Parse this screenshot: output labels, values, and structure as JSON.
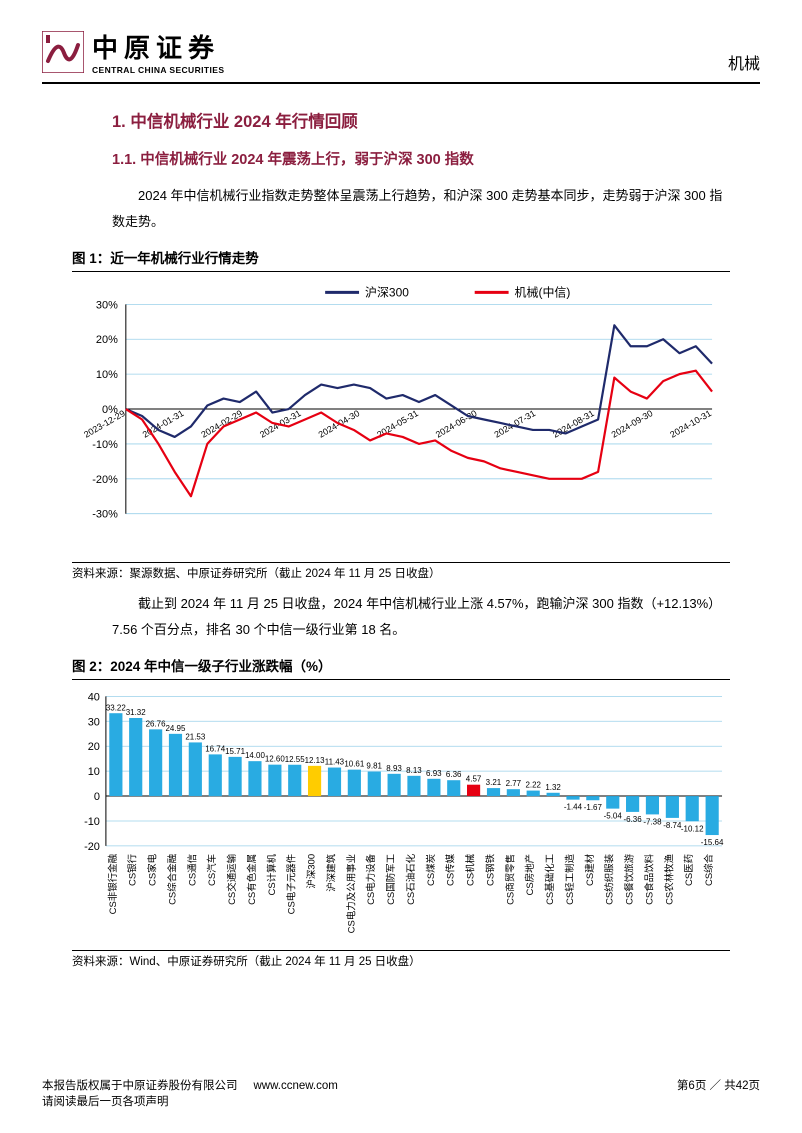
{
  "header": {
    "logo_cn": "中原证券",
    "logo_en": "CENTRAL CHINA SECURITIES",
    "logo_color": "#8b1e3f",
    "right_label": "机械"
  },
  "sections": {
    "h1": "1. 中信机械行业 2024 年行情回顾",
    "h2": "1.1. 中信机械行业 2024 年震荡上行，弱于沪深 300 指数",
    "para1": "2024 年中信机械行业指数走势整体呈震荡上行趋势，和沪深 300 走势基本同步，走势弱于沪深 300 指数走势。",
    "para2": "截止到 2024 年 11 月 25 日收盘，2024 年中信机械行业上涨 4.57%，跑输沪深 300 指数（+12.13%）7.56 个百分点，排名 30 个中信一级行业第 18 名。"
  },
  "fig1": {
    "title": "图 1：近一年机械行业行情走势",
    "source": "资料来源：聚源数据、中原证券研究所（截止 2024 年 11 月 25 日收盘）",
    "type": "line",
    "legend": [
      {
        "label": "沪深300",
        "color": "#1f2a6b"
      },
      {
        "label": "机械(中信)",
        "color": "#e60012"
      }
    ],
    "y": {
      "min": -30,
      "max": 30,
      "step": 10,
      "suffix": "%",
      "fontsize": 11,
      "color": "#000"
    },
    "x_labels": [
      "2023-12-29",
      "2024-01-31",
      "2024-02-29",
      "2024-03-31",
      "2024-04-30",
      "2024-05-31",
      "2024-06-30",
      "2024-07-31",
      "2024-08-31",
      "2024-09-30",
      "2024-10-31"
    ],
    "x_fontsize": 9,
    "grid_color": "#9ad0ea",
    "axis_color": "#000",
    "line_width": 2.2,
    "series_hs300": [
      0,
      -2,
      -6,
      -8,
      -5,
      1,
      3,
      2,
      5,
      -1,
      0,
      4,
      7,
      6,
      7,
      6,
      3,
      4,
      2,
      4,
      1,
      -2,
      -3,
      -4,
      -5,
      -6,
      -6,
      -7,
      -5,
      -3,
      24,
      18,
      18,
      20,
      16,
      18,
      13
    ],
    "series_jixie": [
      0,
      -3,
      -10,
      -18,
      -25,
      -10,
      -5,
      -3,
      -1,
      -4,
      -5,
      -3,
      -1,
      -4,
      -6,
      -9,
      -7,
      -8,
      -10,
      -9,
      -12,
      -14,
      -15,
      -17,
      -18,
      -19,
      -20,
      -20,
      -20,
      -18,
      9,
      5,
      3,
      8,
      10,
      11,
      5
    ]
  },
  "fig2": {
    "title": "图 2：2024 年中信一级子行业涨跌幅（%）",
    "source": "资料来源：Wind、中原证券研究所（截止 2024 年 11 月 25 日收盘）",
    "type": "bar",
    "y": {
      "min": -20,
      "max": 40,
      "step": 10,
      "fontsize": 11,
      "color": "#000"
    },
    "x_fontsize": 9.5,
    "grid_color": "#9ad0ea",
    "bar_color_default": "#29abe2",
    "bar_color_hs300": "#ffcc00",
    "bar_color_jixie": "#e60012",
    "label_fontsize": 8,
    "bars": [
      {
        "label": "CS非银行金融",
        "v": 33.22
      },
      {
        "label": "CS银行",
        "v": 31.32
      },
      {
        "label": "CS家电",
        "v": 26.76
      },
      {
        "label": "CS综合金融",
        "v": 24.95
      },
      {
        "label": "CS通信",
        "v": 21.53
      },
      {
        "label": "CS汽车",
        "v": 16.74
      },
      {
        "label": "CS交通运输",
        "v": 15.71
      },
      {
        "label": "CS有色金属",
        "v": 14.0
      },
      {
        "label": "CS计算机",
        "v": 12.6
      },
      {
        "label": "CS电子元器件",
        "v": 12.55
      },
      {
        "label": "沪深300",
        "v": 12.13,
        "hl": "hs300"
      },
      {
        "label": "沪深建筑",
        "v": 11.43
      },
      {
        "label": "CS电力及公用事业",
        "v": 10.61
      },
      {
        "label": "CS电力设备",
        "v": 9.81
      },
      {
        "label": "CS国防军工",
        "v": 8.93
      },
      {
        "label": "CS石油石化",
        "v": 8.13
      },
      {
        "label": "CS煤炭",
        "v": 6.93
      },
      {
        "label": "CS传媒",
        "v": 6.36
      },
      {
        "label": "CS机械",
        "v": 4.57,
        "hl": "jixie"
      },
      {
        "label": "CS钢铁",
        "v": 3.21
      },
      {
        "label": "CS商贸零售",
        "v": 2.77
      },
      {
        "label": "CS房地产",
        "v": 2.22
      },
      {
        "label": "CS基础化工",
        "v": 1.32
      },
      {
        "label": "CS轻工制造",
        "v": -1.44
      },
      {
        "label": "CS建材",
        "v": -1.67
      },
      {
        "label": "CS纺织服装",
        "v": -5.04
      },
      {
        "label": "CS餐饮旅游",
        "v": -6.36
      },
      {
        "label": "CS食品饮料",
        "v": -7.38
      },
      {
        "label": "CS农林牧渔",
        "v": -8.74
      },
      {
        "label": "CS医药",
        "v": -10.12
      },
      {
        "label": "CS综合",
        "v": -15.64
      }
    ]
  },
  "footer": {
    "line1": "本报告版权属于中原证券股份有限公司",
    "url": "www.ccnew.com",
    "line2": "请阅读最后一页各项声明",
    "page": "第6页 ／ 共42页"
  },
  "colors": {
    "heading": "#8b1e3f",
    "text": "#000000",
    "rule": "#000000"
  }
}
